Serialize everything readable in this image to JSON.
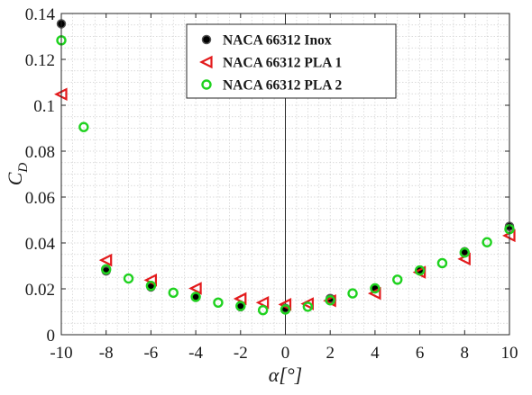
{
  "chart_data": {
    "type": "scatter",
    "xlabel": "α[°]",
    "ylabel": "C_D",
    "xlim": [
      -10,
      10
    ],
    "ylim": [
      0,
      0.14
    ],
    "x_ticks": [
      "-10",
      "-8",
      "-6",
      "-4",
      "-2",
      "0",
      "2",
      "4",
      "6",
      "8",
      "10"
    ],
    "y_ticks": [
      "0",
      "0.02",
      "0.04",
      "0.06",
      "0.08",
      "0.1",
      "0.12",
      "0.14"
    ],
    "grid": "minor dotted",
    "legend_position": "top-center",
    "series": [
      {
        "name": "NACA 66312 Inox",
        "marker": "filled-circle",
        "color": "#000000",
        "points": [
          [
            -10,
            0.1355
          ],
          [
            -8,
            0.0278
          ],
          [
            -6,
            0.0208
          ],
          [
            -4,
            0.0163
          ],
          [
            -2,
            0.0122
          ],
          [
            0,
            0.0115
          ],
          [
            2,
            0.0158
          ],
          [
            4,
            0.0203
          ],
          [
            6,
            0.0282
          ],
          [
            8,
            0.0362
          ],
          [
            10,
            0.0472
          ]
        ]
      },
      {
        "name": "NACA 66312 PLA 1",
        "marker": "open-triangle-left",
        "color": "#e31a1c",
        "points": [
          [
            -10,
            0.1048
          ],
          [
            -8,
            0.0325
          ],
          [
            -6,
            0.0238
          ],
          [
            -4,
            0.0202
          ],
          [
            -2,
            0.0157
          ],
          [
            -1,
            0.014
          ],
          [
            0,
            0.0132
          ],
          [
            1,
            0.0135
          ],
          [
            2,
            0.0148
          ],
          [
            4,
            0.018
          ],
          [
            6,
            0.0272
          ],
          [
            8,
            0.033
          ],
          [
            10,
            0.0432
          ]
        ]
      },
      {
        "name": "NACA 66312 PLA 2",
        "marker": "open-circle",
        "color": "#1fd21f",
        "points": [
          [
            -10,
            0.1283
          ],
          [
            -9,
            0.0905
          ],
          [
            -8,
            0.0285
          ],
          [
            -7,
            0.0245
          ],
          [
            -6,
            0.0213
          ],
          [
            -5,
            0.0183
          ],
          [
            -4,
            0.0165
          ],
          [
            -3,
            0.014
          ],
          [
            -2,
            0.0125
          ],
          [
            -1,
            0.0107
          ],
          [
            0,
            0.011
          ],
          [
            1,
            0.0122
          ],
          [
            2,
            0.015
          ],
          [
            3,
            0.018
          ],
          [
            4,
            0.0202
          ],
          [
            5,
            0.024
          ],
          [
            6,
            0.028
          ],
          [
            7,
            0.0312
          ],
          [
            8,
            0.0358
          ],
          [
            9,
            0.0403
          ],
          [
            10,
            0.046
          ]
        ]
      }
    ]
  }
}
